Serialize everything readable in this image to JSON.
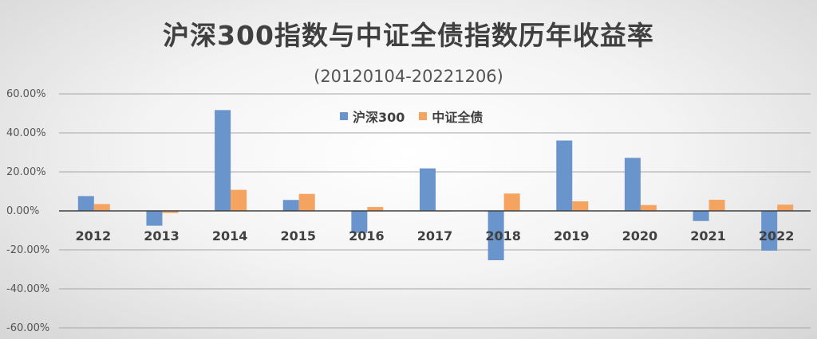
{
  "chart_data": {
    "type": "bar",
    "title": "沪深300指数与中证全债指数历年收益率",
    "subtitle": "(20120104-20221206)",
    "categories": [
      "2012",
      "2013",
      "2014",
      "2015",
      "2016",
      "2017",
      "2018",
      "2019",
      "2020",
      "2021",
      "2022"
    ],
    "series": [
      {
        "name": "沪深300",
        "color": "#6a95cc",
        "values": [
          7.6,
          -7.6,
          51.7,
          5.6,
          -11.3,
          21.8,
          -25.3,
          36.1,
          27.2,
          -5.2,
          -20.4
        ]
      },
      {
        "name": "中证全债",
        "color": "#f4a460",
        "values": [
          3.5,
          -1.1,
          10.8,
          8.7,
          2.0,
          -0.3,
          8.9,
          4.9,
          3.0,
          5.7,
          3.2
        ]
      }
    ],
    "ylim": [
      -60,
      60
    ],
    "yticks": [
      60,
      40,
      20,
      0,
      -20,
      -40,
      -60
    ],
    "ytick_labels": [
      "60.00%",
      "40.00%",
      "20.00%",
      "0.00%",
      "-20.00%",
      "-40.00%",
      "-60.00%"
    ],
    "grid": true,
    "legend_position": "top-center"
  }
}
